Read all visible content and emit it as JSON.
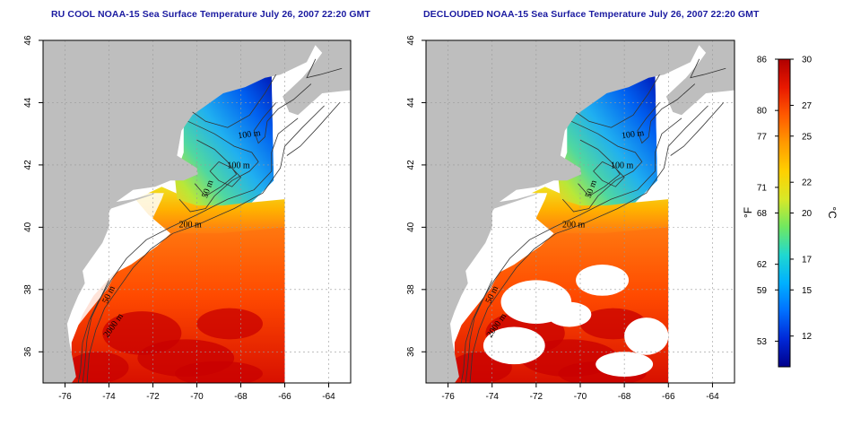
{
  "titles": {
    "left": "RU COOL NOAA-15 Sea Surface Temperature July 26, 2007 22:20 GMT",
    "right": "DECLOUDED NOAA-15 Sea Surface Temperature July 26, 2007 22:20 GMT"
  },
  "axes": {
    "x_ticks": [
      "-76",
      "-74",
      "-72",
      "-70",
      "-68",
      "-66",
      "-64"
    ],
    "y_ticks": [
      "36",
      "38",
      "40",
      "42",
      "44",
      "46"
    ],
    "x_range": [
      -77,
      -63
    ],
    "y_range": [
      35,
      46
    ]
  },
  "contour_labels": [
    {
      "text": "100 m",
      "lon": -67.6,
      "lat": 42.9,
      "rot": -8
    },
    {
      "text": "100 m",
      "lon": -68.1,
      "lat": 41.9,
      "rot": 0
    },
    {
      "text": "50 m",
      "lon": -69.4,
      "lat": 41.2,
      "rot": -70
    },
    {
      "text": "200 m",
      "lon": -70.3,
      "lat": 40.0,
      "rot": 0
    },
    {
      "text": "50 m",
      "lon": -73.9,
      "lat": 37.8,
      "rot": -65
    },
    {
      "text": "2000 m",
      "lon": -73.7,
      "lat": 36.8,
      "rot": -55
    }
  ],
  "colorbar": {
    "celsius_ticks": [
      "30",
      "27",
      "25",
      "22",
      "20",
      "17",
      "15",
      "12"
    ],
    "celsius_values": [
      30,
      27,
      25,
      22,
      20,
      17,
      15,
      12
    ],
    "fahrenheit_ticks": [
      "86",
      "80",
      "77",
      "71",
      "68",
      "62",
      "59",
      "53"
    ],
    "fahrenheit_values": [
      86,
      80,
      77,
      71,
      68,
      62,
      59,
      53
    ],
    "range_celsius": [
      10,
      30
    ],
    "unit_left": "°F",
    "unit_right": "°C",
    "colors": [
      "#00008b",
      "#0028d8",
      "#0070ff",
      "#00b0ff",
      "#20d8d0",
      "#70e860",
      "#d8e828",
      "#ffd000",
      "#ff9a00",
      "#ff5a00",
      "#e81800",
      "#b00000"
    ]
  },
  "colors": {
    "land": "#bebebe",
    "cloud": "#ffffff",
    "title": "#1a1aa0",
    "contour": "#333333",
    "grid": "#9a9a9a"
  }
}
